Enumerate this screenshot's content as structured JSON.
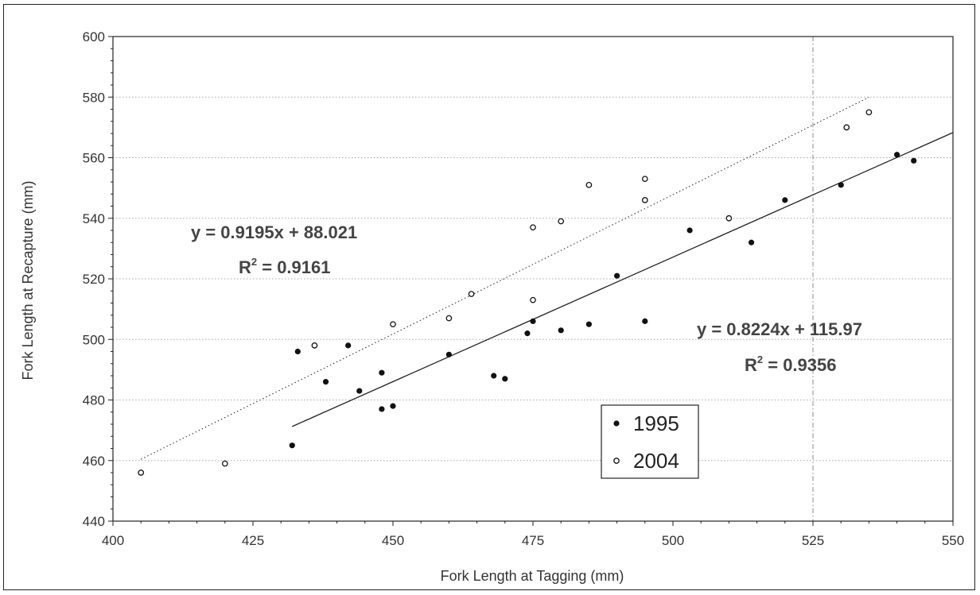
{
  "chart_data": {
    "type": "scatter",
    "title": "",
    "xlabel": "Fork Length at Tagging (mm)",
    "ylabel": "Fork Length at Recapture (mm)",
    "xlim": [
      400,
      550
    ],
    "ylim": [
      440,
      600
    ],
    "xticks": [
      "400",
      "425",
      "450",
      "475",
      "500",
      "525",
      "550"
    ],
    "yticks": [
      "440",
      "460",
      "480",
      "500",
      "520",
      "540",
      "560",
      "580",
      "600"
    ],
    "grid": true,
    "legend_placement": "lower-center",
    "series": [
      {
        "name": "1995",
        "marker": "filled-circle",
        "color": "#111111",
        "points": [
          [
            432,
            465
          ],
          [
            433,
            496
          ],
          [
            438,
            486
          ],
          [
            442,
            498
          ],
          [
            444,
            483
          ],
          [
            448,
            489
          ],
          [
            448,
            477
          ],
          [
            450,
            478
          ],
          [
            460,
            495
          ],
          [
            468,
            488
          ],
          [
            470,
            487
          ],
          [
            474,
            502
          ],
          [
            475,
            506
          ],
          [
            480,
            503
          ],
          [
            485,
            505
          ],
          [
            490,
            521
          ],
          [
            495,
            506
          ],
          [
            503,
            536
          ],
          [
            514,
            532
          ],
          [
            520,
            546
          ],
          [
            530,
            551
          ],
          [
            540,
            561
          ],
          [
            543,
            559
          ]
        ],
        "trendline": {
          "equation": "y = 0.8224x + 115.97",
          "r2": "R² = 0.9356",
          "r2_prefix": "R",
          "r2_exp": "2",
          "r2_value": " = 0.9356",
          "slope": 0.8224,
          "intercept": 115.97,
          "x_range": [
            432,
            550
          ],
          "style": "solid"
        }
      },
      {
        "name": "2004",
        "marker": "open-circle",
        "color": "#111111",
        "points": [
          [
            405,
            456
          ],
          [
            420,
            459
          ],
          [
            436,
            498
          ],
          [
            450,
            505
          ],
          [
            460,
            507
          ],
          [
            464,
            515
          ],
          [
            475,
            537
          ],
          [
            475,
            513
          ],
          [
            480,
            539
          ],
          [
            485,
            551
          ],
          [
            495,
            553
          ],
          [
            495,
            546
          ],
          [
            510,
            540
          ],
          [
            531,
            570
          ],
          [
            535,
            575
          ]
        ],
        "trendline": {
          "equation": "y = 0.9195x + 88.021",
          "r2": "R² = 0.9161",
          "r2_prefix": "R",
          "r2_exp": "2",
          "r2_value": " = 0.9161",
          "slope": 0.9195,
          "intercept": 88.021,
          "x_range": [
            405,
            535
          ],
          "style": "dotted"
        }
      }
    ]
  }
}
